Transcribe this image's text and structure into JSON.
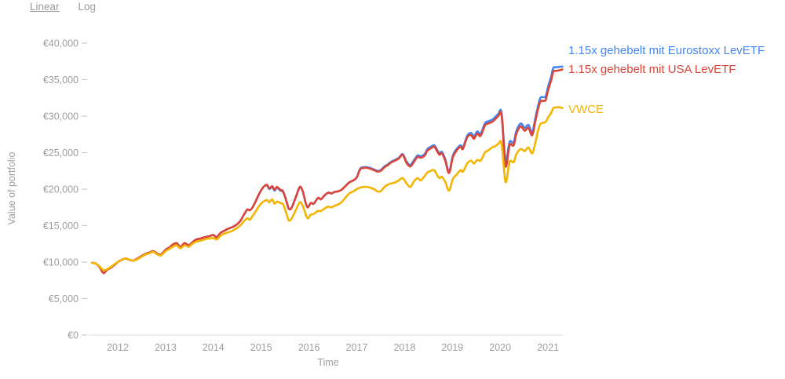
{
  "controls": {
    "linear_label": "Linear",
    "log_label": "Log",
    "active_scale": "Linear"
  },
  "colors": {
    "axis_text": "#9e9e9e",
    "axis_line": "#dcdcdc",
    "tick_mark": "#c9c9c9",
    "toggle_text": "#9b9b9b",
    "background": "#ffffff"
  },
  "chart_data": {
    "type": "line",
    "title": "",
    "xlabel": "Time",
    "ylabel": "Value of portfolio",
    "currency": "EUR",
    "values_unit": "thousands of EUR",
    "grid": false,
    "legend_position": "inline-right-of-lines",
    "xlim": [
      2011.45,
      2021.32
    ],
    "ylim": [
      0,
      40
    ],
    "x_ticks": [
      2012,
      2013,
      2014,
      2015,
      2016,
      2017,
      2018,
      2019,
      2020,
      2021
    ],
    "y_tick_values": [
      0,
      5,
      10,
      15,
      20,
      25,
      30,
      35,
      40
    ],
    "y_tick_labels": [
      "€0",
      "€5,000",
      "€10,000",
      "€15,000",
      "€20,000",
      "€25,000",
      "€30,000",
      "€35,000",
      "€40,000"
    ],
    "series": [
      {
        "name": "1.15x gehebelt mit Eurostoxx LevETF",
        "color": "#4285F4"
      },
      {
        "name": "1.15x gehebelt mit USA LevETF",
        "color": "#DB4437"
      },
      {
        "name": "VWCE",
        "color": "#F4B400"
      }
    ],
    "points_format": [
      "year",
      "eurostoxx_lev",
      "usa_lev",
      "vwce"
    ],
    "points": [
      [
        2011.46,
        9.9,
        9.9,
        9.9
      ],
      [
        2011.54,
        9.8,
        9.8,
        9.8
      ],
      [
        2011.62,
        9.3,
        9.3,
        9.4
      ],
      [
        2011.7,
        8.5,
        8.5,
        8.9
      ],
      [
        2011.77,
        8.9,
        8.9,
        9.0
      ],
      [
        2011.85,
        9.2,
        9.2,
        9.3
      ],
      [
        2011.93,
        9.6,
        9.6,
        9.7
      ],
      [
        2012.0,
        10.0,
        10.0,
        10.0
      ],
      [
        2012.08,
        10.3,
        10.3,
        10.3
      ],
      [
        2012.16,
        10.5,
        10.5,
        10.5
      ],
      [
        2012.25,
        10.3,
        10.3,
        10.3
      ],
      [
        2012.33,
        10.2,
        10.2,
        10.2
      ],
      [
        2012.41,
        10.5,
        10.5,
        10.4
      ],
      [
        2012.49,
        10.8,
        10.8,
        10.7
      ],
      [
        2012.57,
        11.1,
        11.1,
        11.0
      ],
      [
        2012.66,
        11.3,
        11.3,
        11.2
      ],
      [
        2012.74,
        11.5,
        11.5,
        11.4
      ],
      [
        2012.82,
        11.2,
        11.2,
        11.1
      ],
      [
        2012.9,
        11.0,
        11.0,
        10.9
      ],
      [
        2013.0,
        11.7,
        11.7,
        11.5
      ],
      [
        2013.08,
        12.0,
        12.0,
        11.8
      ],
      [
        2013.15,
        12.4,
        12.4,
        12.1
      ],
      [
        2013.23,
        12.6,
        12.6,
        12.3
      ],
      [
        2013.31,
        12.1,
        12.1,
        11.9
      ],
      [
        2013.4,
        12.6,
        12.6,
        12.3
      ],
      [
        2013.48,
        12.3,
        12.3,
        12.1
      ],
      [
        2013.56,
        12.7,
        12.7,
        12.5
      ],
      [
        2013.64,
        13.1,
        13.1,
        12.8
      ],
      [
        2013.72,
        13.2,
        13.2,
        12.9
      ],
      [
        2013.81,
        13.4,
        13.4,
        13.1
      ],
      [
        2013.89,
        13.5,
        13.5,
        13.2
      ],
      [
        2014.0,
        13.7,
        13.7,
        13.3
      ],
      [
        2014.07,
        13.4,
        13.4,
        13.1
      ],
      [
        2014.15,
        14.0,
        14.0,
        13.6
      ],
      [
        2014.23,
        14.3,
        14.3,
        13.9
      ],
      [
        2014.32,
        14.6,
        14.6,
        14.1
      ],
      [
        2014.4,
        14.8,
        14.8,
        14.3
      ],
      [
        2014.48,
        15.1,
        15.1,
        14.6
      ],
      [
        2014.56,
        15.6,
        15.6,
        15.0
      ],
      [
        2014.64,
        16.5,
        16.5,
        15.6
      ],
      [
        2014.71,
        17.2,
        17.2,
        16.0
      ],
      [
        2014.76,
        17.1,
        17.1,
        15.8
      ],
      [
        2014.82,
        17.5,
        17.5,
        16.3
      ],
      [
        2014.89,
        18.4,
        18.4,
        17.0
      ],
      [
        2014.97,
        19.5,
        19.5,
        17.8
      ],
      [
        2015.05,
        20.3,
        20.3,
        18.3
      ],
      [
        2015.12,
        20.5,
        20.6,
        18.5
      ],
      [
        2015.17,
        20.0,
        20.1,
        18.2
      ],
      [
        2015.23,
        20.3,
        20.4,
        18.6
      ],
      [
        2015.28,
        19.8,
        19.9,
        18.0
      ],
      [
        2015.33,
        20.2,
        20.3,
        18.3
      ],
      [
        2015.4,
        19.8,
        19.9,
        18.1
      ],
      [
        2015.46,
        19.6,
        19.7,
        17.9
      ],
      [
        2015.53,
        18.3,
        18.3,
        16.6
      ],
      [
        2015.58,
        17.3,
        17.3,
        15.7
      ],
      [
        2015.64,
        17.5,
        17.5,
        16.0
      ],
      [
        2015.73,
        19.0,
        19.0,
        17.2
      ],
      [
        2015.81,
        20.3,
        20.3,
        18.2
      ],
      [
        2015.87,
        19.7,
        19.7,
        17.7
      ],
      [
        2015.92,
        18.4,
        18.4,
        16.8
      ],
      [
        2015.97,
        17.5,
        17.5,
        16.0
      ],
      [
        2016.04,
        18.1,
        18.1,
        16.5
      ],
      [
        2016.1,
        18.0,
        18.0,
        16.6
      ],
      [
        2016.19,
        18.8,
        18.8,
        17.0
      ],
      [
        2016.25,
        18.6,
        18.6,
        17.0
      ],
      [
        2016.32,
        19.1,
        19.1,
        17.3
      ],
      [
        2016.4,
        19.5,
        19.5,
        17.6
      ],
      [
        2016.47,
        19.4,
        19.4,
        17.5
      ],
      [
        2016.53,
        19.6,
        19.6,
        17.7
      ],
      [
        2016.61,
        19.7,
        19.7,
        17.9
      ],
      [
        2016.68,
        19.9,
        19.9,
        18.2
      ],
      [
        2016.76,
        20.4,
        20.4,
        18.8
      ],
      [
        2016.84,
        20.9,
        20.9,
        19.4
      ],
      [
        2016.93,
        21.2,
        21.2,
        19.7
      ],
      [
        2017.0,
        21.6,
        21.6,
        20.0
      ],
      [
        2017.07,
        22.8,
        22.7,
        20.2
      ],
      [
        2017.15,
        23.0,
        22.9,
        20.3
      ],
      [
        2017.22,
        23.0,
        22.9,
        20.3
      ],
      [
        2017.28,
        22.9,
        22.8,
        20.2
      ],
      [
        2017.36,
        22.7,
        22.6,
        20.0
      ],
      [
        2017.43,
        22.5,
        22.4,
        19.7
      ],
      [
        2017.5,
        22.6,
        22.5,
        19.7
      ],
      [
        2017.58,
        23.1,
        23.0,
        20.3
      ],
      [
        2017.65,
        23.4,
        23.3,
        20.6
      ],
      [
        2017.73,
        23.8,
        23.7,
        20.8
      ],
      [
        2017.8,
        24.0,
        23.9,
        20.9
      ],
      [
        2017.88,
        24.3,
        24.2,
        21.2
      ],
      [
        2017.96,
        24.8,
        24.7,
        21.5
      ],
      [
        2018.04,
        23.8,
        23.6,
        20.8
      ],
      [
        2018.12,
        23.3,
        23.1,
        20.3
      ],
      [
        2018.2,
        24.0,
        23.8,
        21.1
      ],
      [
        2018.27,
        24.6,
        24.4,
        21.5
      ],
      [
        2018.34,
        24.5,
        24.3,
        21.2
      ],
      [
        2018.42,
        24.8,
        24.6,
        21.8
      ],
      [
        2018.48,
        25.5,
        25.3,
        22.3
      ],
      [
        2018.55,
        25.8,
        25.6,
        22.5
      ],
      [
        2018.62,
        26.0,
        25.8,
        22.6
      ],
      [
        2018.68,
        25.4,
        25.2,
        21.9
      ],
      [
        2018.73,
        24.9,
        24.7,
        21.5
      ],
      [
        2018.78,
        25.1,
        24.9,
        21.7
      ],
      [
        2018.85,
        24.1,
        23.9,
        21.0
      ],
      [
        2018.93,
        22.4,
        22.2,
        19.8
      ],
      [
        2019.01,
        24.6,
        24.4,
        21.4
      ],
      [
        2019.09,
        25.5,
        25.3,
        22.0
      ],
      [
        2019.17,
        26.0,
        25.8,
        22.6
      ],
      [
        2019.22,
        25.7,
        25.5,
        22.4
      ],
      [
        2019.31,
        27.3,
        27.1,
        23.5
      ],
      [
        2019.39,
        27.7,
        27.4,
        23.9
      ],
      [
        2019.45,
        27.2,
        26.9,
        23.5
      ],
      [
        2019.52,
        27.9,
        27.6,
        24.0
      ],
      [
        2019.59,
        27.6,
        27.3,
        23.9
      ],
      [
        2019.68,
        29.0,
        28.7,
        25.0
      ],
      [
        2019.75,
        29.3,
        29.0,
        25.3
      ],
      [
        2019.83,
        29.5,
        29.2,
        25.7
      ],
      [
        2019.9,
        29.9,
        29.6,
        25.9
      ],
      [
        2019.96,
        30.3,
        30.0,
        26.2
      ],
      [
        2020.03,
        30.4,
        30.1,
        26.2
      ],
      [
        2020.11,
        23.9,
        23.2,
        21.0
      ],
      [
        2020.18,
        26.0,
        25.5,
        23.2
      ],
      [
        2020.21,
        26.6,
        26.2,
        23.9
      ],
      [
        2020.28,
        26.4,
        26.0,
        23.7
      ],
      [
        2020.34,
        28.0,
        27.6,
        24.8
      ],
      [
        2020.43,
        29.0,
        28.6,
        25.5
      ],
      [
        2020.51,
        28.4,
        28.0,
        25.2
      ],
      [
        2020.59,
        28.8,
        28.4,
        25.7
      ],
      [
        2020.67,
        27.8,
        27.4,
        24.9
      ],
      [
        2020.74,
        29.9,
        29.5,
        26.5
      ],
      [
        2020.79,
        31.3,
        30.9,
        28.0
      ],
      [
        2020.84,
        32.5,
        32.0,
        28.9
      ],
      [
        2020.9,
        32.6,
        32.1,
        29.1
      ],
      [
        2020.95,
        32.7,
        32.2,
        29.2
      ],
      [
        2021.0,
        34.0,
        33.5,
        29.8
      ],
      [
        2021.07,
        35.5,
        35.0,
        30.5
      ],
      [
        2021.11,
        36.6,
        36.1,
        31.1
      ],
      [
        2021.18,
        36.7,
        36.2,
        31.2
      ],
      [
        2021.25,
        36.75,
        36.3,
        31.2
      ],
      [
        2021.3,
        36.8,
        36.4,
        31.1
      ]
    ]
  }
}
